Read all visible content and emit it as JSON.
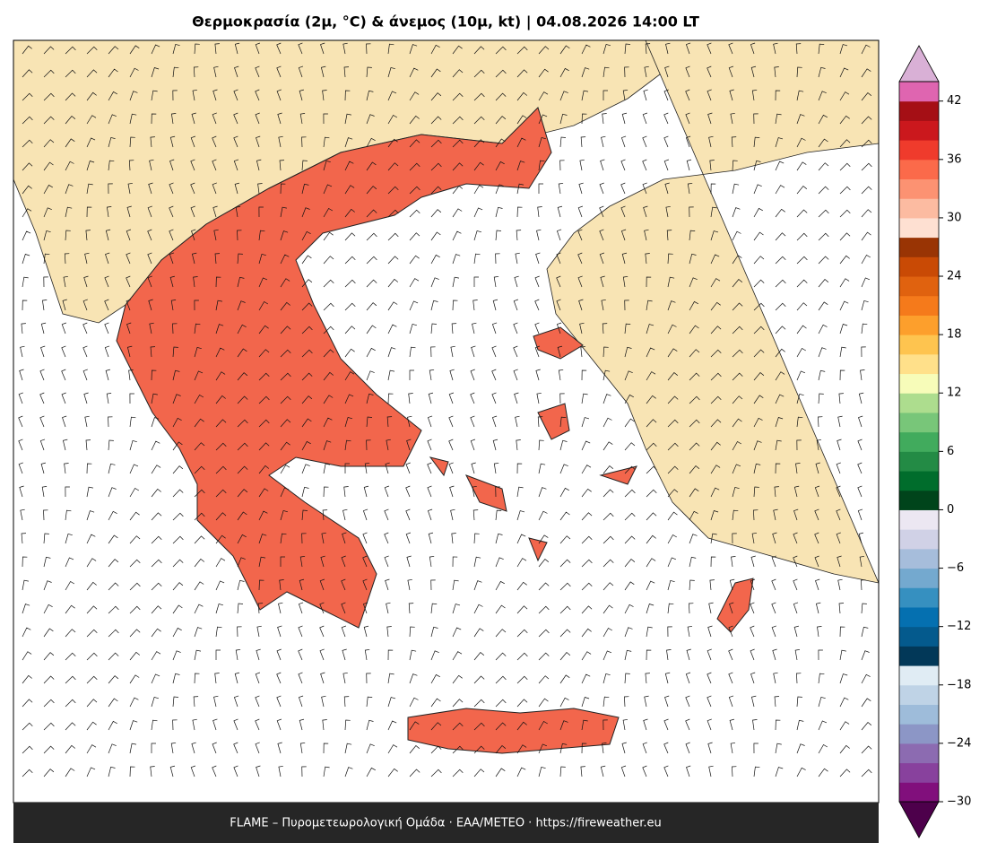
{
  "header": {
    "title": "Θερμοκρασία (2μ, °C) & άνεμος (10μ, kt)  |  04.08.2026 14:00 LT"
  },
  "footer": {
    "text": "FLAME – Πυρομετεωρολογική Ομάδα · ΕΑΑ/METEO · https://fireweather.eu"
  },
  "chart_data": {
    "type": "colorbar",
    "ylim": [
      -30,
      44
    ],
    "yticks": [
      {
        "value": -30,
        "label": "−30"
      },
      {
        "value": -24,
        "label": "−24"
      },
      {
        "value": -18,
        "label": "−18"
      },
      {
        "value": -12,
        "label": "−12"
      },
      {
        "value": -6,
        "label": "−6"
      },
      0,
      6,
      12,
      18,
      24,
      30,
      36,
      42
    ],
    "colors": [
      "#810f7c",
      "#88419d",
      "#8c6bb1",
      "#8c96c6",
      "#9ebcda",
      "#bfd3e6",
      "#e0ecf4",
      "#023858",
      "#045a8d",
      "#0570b0",
      "#3690c0",
      "#74a9cf",
      "#a6bddb",
      "#d0d1e6",
      "#ece7f2",
      "#00441b",
      "#006d2c",
      "#238b45",
      "#41ab5d",
      "#78c679",
      "#addd8e",
      "#f7fcb9",
      "#ffe08a",
      "#fec44f",
      "#fd9f2c",
      "#f57a1b",
      "#e0620f",
      "#c94a05",
      "#993404",
      "#fee0d2",
      "#fcbba1",
      "#fc9272",
      "#fb6a4a",
      "#ef3b2c",
      "#cb181d",
      "#a50f15",
      "#df65b0"
    ],
    "extend_colors": [
      "#4d004b",
      "#d9b0d6"
    ]
  }
}
